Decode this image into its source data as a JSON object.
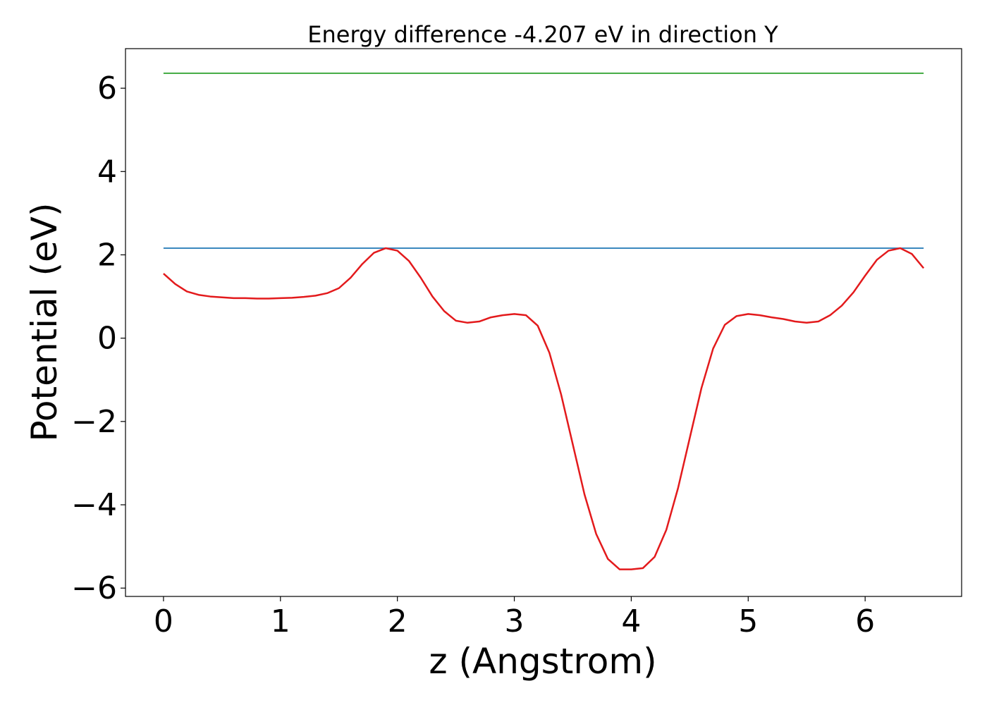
{
  "chart_data": {
    "type": "line",
    "title": "Energy difference -4.207 eV in direction Y",
    "xlabel": "z (Angstrom)",
    "ylabel": "Potential (eV)",
    "xlim": [
      -0.325,
      6.825
    ],
    "ylim": [
      -6.2,
      6.95
    ],
    "x_ticks": [
      0,
      1,
      2,
      3,
      4,
      5,
      6
    ],
    "x_tick_labels": [
      "0",
      "1",
      "2",
      "3",
      "4",
      "5",
      "6"
    ],
    "y_ticks": [
      -6,
      -4,
      -2,
      0,
      2,
      4,
      6
    ],
    "y_tick_labels": [
      "−6",
      "−4",
      "−2",
      "0",
      "2",
      "4",
      "6"
    ],
    "grid": false,
    "legend": "none",
    "series": [
      {
        "color": "#2ca02c",
        "x": [
          0,
          6.5
        ],
        "y": [
          6.36,
          6.36
        ]
      },
      {
        "color": "#1f77b4",
        "x": [
          0,
          6.5
        ],
        "y": [
          2.16,
          2.16
        ]
      },
      {
        "color": "#e31a1c",
        "x": [
          0,
          0.1,
          0.2,
          0.3,
          0.4,
          0.5,
          0.6,
          0.7,
          0.8,
          0.9,
          1.0,
          1.1,
          1.2,
          1.3,
          1.4,
          1.5,
          1.6,
          1.7,
          1.8,
          1.9,
          2.0,
          2.1,
          2.2,
          2.3,
          2.4,
          2.5,
          2.6,
          2.7,
          2.8,
          2.9,
          3.0,
          3.1,
          3.2,
          3.3,
          3.4,
          3.5,
          3.6,
          3.7,
          3.8,
          3.9,
          4.0,
          4.1,
          4.2,
          4.3,
          4.4,
          4.5,
          4.6,
          4.7,
          4.8,
          4.9,
          5.0,
          5.1,
          5.2,
          5.3,
          5.4,
          5.5,
          5.6,
          5.7,
          5.8,
          5.9,
          6.0,
          6.1,
          6.2,
          6.3,
          6.4,
          6.5
        ],
        "y": [
          1.55,
          1.3,
          1.12,
          1.04,
          1.0,
          0.98,
          0.96,
          0.96,
          0.95,
          0.95,
          0.96,
          0.97,
          0.99,
          1.02,
          1.08,
          1.2,
          1.45,
          1.78,
          2.05,
          2.16,
          2.1,
          1.85,
          1.45,
          1.0,
          0.65,
          0.42,
          0.37,
          0.4,
          0.5,
          0.55,
          0.58,
          0.55,
          0.3,
          -0.35,
          -1.35,
          -2.55,
          -3.75,
          -4.7,
          -5.3,
          -5.55,
          -5.55,
          -5.52,
          -5.25,
          -4.6,
          -3.6,
          -2.4,
          -1.2,
          -0.25,
          0.32,
          0.53,
          0.58,
          0.55,
          0.5,
          0.46,
          0.4,
          0.37,
          0.4,
          0.55,
          0.78,
          1.1,
          1.5,
          1.88,
          2.1,
          2.16,
          2.02,
          1.68
        ]
      }
    ]
  }
}
